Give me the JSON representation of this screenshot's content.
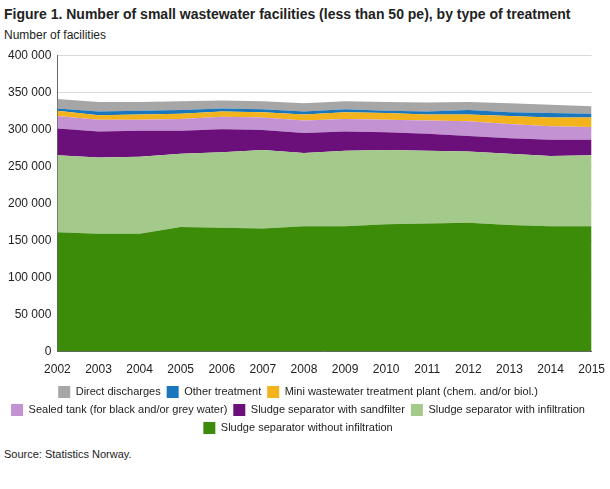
{
  "chart_data": {
    "type": "area",
    "title": "Figure 1. Number of small wastewater facilities (less than 50 pe), by type of treatment",
    "y_label": "Number of facilities",
    "source": "Source: Statistics Norway.",
    "stacked": true,
    "grid": true,
    "legend": "bottom",
    "categories": [
      "2002",
      "2003",
      "2004",
      "2005",
      "2006",
      "2007",
      "2008",
      "2009",
      "2010",
      "2011",
      "2012",
      "2013",
      "2014",
      "2015"
    ],
    "ylim": [
      0,
      400000
    ],
    "yticks": [
      0,
      {
        "value": 50000,
        "label": "50 000"
      },
      {
        "value": 100000,
        "label": "100 000"
      },
      {
        "value": 150000,
        "label": "150 000"
      },
      {
        "value": 200000,
        "label": "200 000"
      },
      {
        "value": 250000,
        "label": "250 000"
      },
      {
        "value": 300000,
        "label": "300 000"
      },
      {
        "value": 350000,
        "label": "350 000"
      },
      {
        "value": 400000,
        "label": "400 000"
      }
    ],
    "series": [
      {
        "name": "Sludge separator without infiltration",
        "color": "#3c8c0a",
        "values": [
          161000,
          159000,
          159000,
          168000,
          167000,
          166000,
          169000,
          169000,
          172000,
          173000,
          174000,
          171000,
          169000,
          169000
        ]
      },
      {
        "name": "Sludge separator with infiltration",
        "color": "#a3c98b",
        "values": [
          104000,
          103000,
          104000,
          99000,
          102000,
          106000,
          99000,
          102000,
          100000,
          98000,
          96000,
          96000,
          95000,
          96000
        ]
      },
      {
        "name": "Sludge separator with sandfilter",
        "color": "#6b0f7a",
        "values": [
          36000,
          35000,
          35000,
          31000,
          31000,
          27000,
          27000,
          26000,
          24000,
          23000,
          21000,
          21000,
          22000,
          21000
        ]
      },
      {
        "name": "Sealed tank (for black and/or grey water)",
        "color": "#c392d3",
        "values": [
          17000,
          16000,
          15000,
          16000,
          17000,
          17000,
          17000,
          17000,
          17000,
          18000,
          20000,
          19000,
          18000,
          17000
        ]
      },
      {
        "name": "Mini wastewater treatment plant (chem. and/or biol.)",
        "color": "#f2b31c",
        "values": [
          7000,
          6000,
          7000,
          7000,
          7000,
          7000,
          8000,
          9000,
          9000,
          8000,
          9000,
          11000,
          12000,
          13000
        ]
      },
      {
        "name": "Other treatment",
        "color": "#1a76bd",
        "values": [
          3000,
          5000,
          5000,
          5000,
          4000,
          4000,
          4000,
          4000,
          3000,
          4000,
          6000,
          5000,
          6000,
          5000
        ]
      },
      {
        "name": "Direct discharges",
        "color": "#a6a6a6",
        "values": [
          13000,
          13000,
          12000,
          12000,
          11000,
          11000,
          11000,
          11000,
          12000,
          12000,
          11000,
          12000,
          11000,
          10000
        ]
      }
    ]
  }
}
